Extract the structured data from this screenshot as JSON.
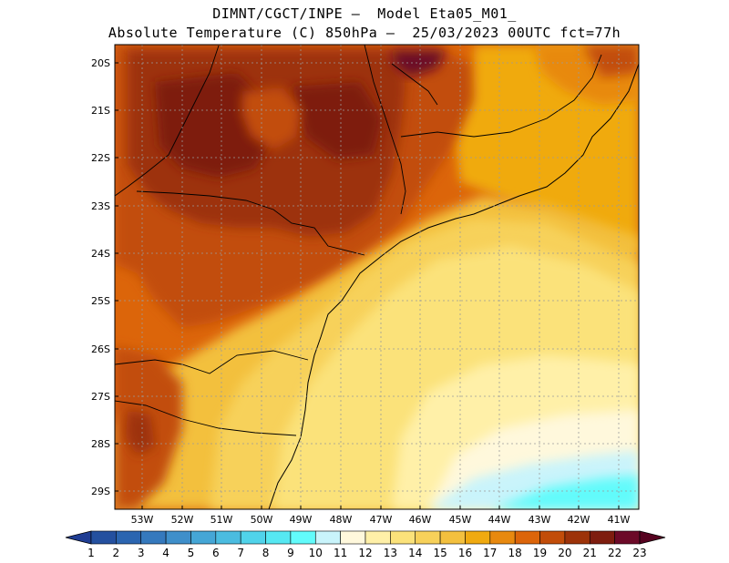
{
  "header": {
    "line1": "DIMNT/CGCT/INPE –  Model Eta05_M01_",
    "line2": "Absolute Temperature (C) 850hPa –  25/03/2023 00UTC fct=77h"
  },
  "map": {
    "lat_labels": [
      "20S",
      "21S",
      "22S",
      "23S",
      "24S",
      "25S",
      "26S",
      "27S",
      "28S",
      "29S"
    ],
    "lon_labels": [
      "53W",
      "52W",
      "51W",
      "50W",
      "49W",
      "48W",
      "47W",
      "46W",
      "45W",
      "44W",
      "43W",
      "42W",
      "41W"
    ]
  },
  "colorbar": {
    "labels": [
      "1",
      "2",
      "3",
      "4",
      "5",
      "6",
      "7",
      "8",
      "9",
      "10",
      "11",
      "12",
      "13",
      "14",
      "15",
      "16",
      "17",
      "18",
      "19",
      "20",
      "21",
      "22",
      "23"
    ],
    "colors": [
      "#1f3d93",
      "#24509f",
      "#2b65b0",
      "#3579bd",
      "#3f8fca",
      "#45a6d6",
      "#4bbce0",
      "#50d3ea",
      "#56e8f2",
      "#62fbfb",
      "#c9f4fb",
      "#fff8dc",
      "#fff0a8",
      "#fbe27a",
      "#f7d15a",
      "#f3c03e",
      "#f0aa10",
      "#e8890f",
      "#dc650a",
      "#c24d09",
      "#9d3309",
      "#7e1d0f",
      "#6c0a28",
      "#560320"
    ]
  }
}
